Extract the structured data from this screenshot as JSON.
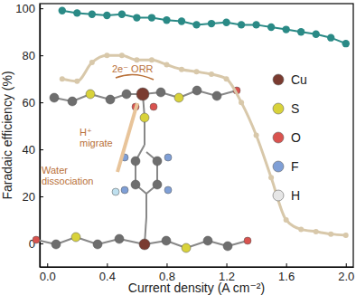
{
  "chart_data": {
    "type": "line",
    "x_label": "Current density (A cm⁻²)",
    "y_label": "Faradaic efficiency (%)",
    "x": [
      0.1,
      0.2,
      0.3,
      0.4,
      0.5,
      0.6,
      0.7,
      0.8,
      0.9,
      1.0,
      1.1,
      1.2,
      1.3,
      1.4,
      1.5,
      1.6,
      1.7,
      1.8,
      1.9,
      2.0
    ],
    "series": [
      {
        "color": "#2a8a86",
        "marker": "circle",
        "line_style": "solid",
        "values": [
          99,
          98,
          97.5,
          97,
          97.5,
          96,
          96,
          95,
          94.5,
          93,
          93.5,
          94,
          93,
          93,
          92,
          91,
          90,
          89,
          87.5,
          85
        ]
      },
      {
        "color": "#d8c8aa",
        "marker": "circle",
        "line_style": "solid",
        "values": [
          70,
          69,
          77,
          80,
          80,
          78,
          78,
          76,
          74,
          73,
          72,
          70,
          60,
          46,
          28,
          10,
          6,
          5,
          4,
          3.5
        ]
      }
    ],
    "xlim": [
      -0.05,
      2.05
    ],
    "xticks": [
      {
        "value": 0,
        "label": "0.0"
      },
      0.4,
      0.8,
      1.2,
      1.6,
      {
        "value": 2,
        "label": "2.0"
      }
    ],
    "ylim": [
      -10,
      102
    ],
    "yticks": [
      0,
      20,
      40,
      60,
      80,
      100
    ],
    "grid": false,
    "annotations": [
      {
        "lines": [
          "2e⁻ ORR"
        ],
        "color": "#b9713a"
      },
      {
        "lines": [
          "H⁺",
          "migrate"
        ],
        "color": "#b9713a"
      },
      {
        "lines": [
          "Water",
          "dissociation"
        ],
        "color": "#b9713a"
      }
    ],
    "atom_legend": [
      {
        "label": "Cu",
        "color": "#7a3b30"
      },
      {
        "label": "S",
        "color": "#d8d23a"
      },
      {
        "label": "O",
        "color": "#d9534f"
      },
      {
        "label": "F",
        "color": "#7f9fd6"
      },
      {
        "label": "H",
        "color": "#e6e6e6"
      }
    ]
  }
}
